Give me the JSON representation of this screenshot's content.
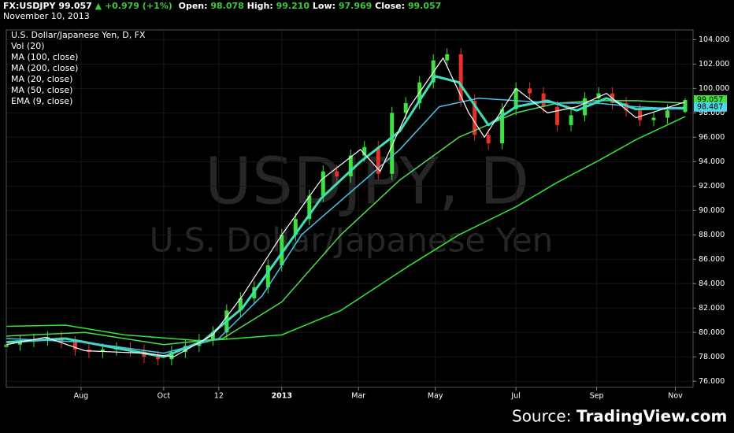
{
  "chart_data": {
    "type": "candlestick",
    "header": {
      "symbol": "FX:USDJPY",
      "last": "99.057",
      "change": "+0.979 (+1%)",
      "open_label": "Open:",
      "open": "98.078",
      "high_label": "High:",
      "high": "99.210",
      "low_label": "Low:",
      "low": "97.969",
      "close_label": "Close:",
      "close": "99.057",
      "date": "November 10, 2013"
    },
    "title": "U.S. Dollar/Japanese Yen, D, FX",
    "volume_label": "Vol (20)",
    "watermark": [
      "USDJPY, D",
      "U.S. Dollar/Japanese Yen"
    ],
    "source_label": "Source:",
    "source": "TradingView.com",
    "xlim": [
      0,
      349
    ],
    "xticks": [
      {
        "value": 38,
        "label": "Aug"
      },
      {
        "value": 80,
        "label": "Oct"
      },
      {
        "value": 108,
        "label": "12"
      },
      {
        "value": 140,
        "label": "2013"
      },
      {
        "value": 179,
        "label": "Mar"
      },
      {
        "value": 218,
        "label": "May"
      },
      {
        "value": 259,
        "label": "Jul"
      },
      {
        "value": 300,
        "label": "Sep"
      },
      {
        "value": 340,
        "label": "Nov"
      }
    ],
    "ylim": [
      75.5,
      104.8
    ],
    "yticks": [
      {
        "value": 76,
        "label": "76.000"
      },
      {
        "value": 78,
        "label": "78.000"
      },
      {
        "value": 80,
        "label": "80.000"
      },
      {
        "value": 82,
        "label": "82.000"
      },
      {
        "value": 84,
        "label": "84.000"
      },
      {
        "value": 86,
        "label": "86.000"
      },
      {
        "value": 88,
        "label": "88.000"
      },
      {
        "value": 90,
        "label": "90.000"
      },
      {
        "value": 92,
        "label": "92.000"
      },
      {
        "value": 94,
        "label": "94.000"
      },
      {
        "value": 96,
        "label": "96.000"
      },
      {
        "value": 98,
        "label": "98.000"
      },
      {
        "value": 100,
        "label": "100.000"
      },
      {
        "value": 102,
        "label": "102.000"
      },
      {
        "value": 104,
        "label": "104.000"
      }
    ],
    "grid": true,
    "up_color": "#3ee23e",
    "down_color": "#e8302a",
    "x": [
      0,
      7,
      14,
      21,
      28,
      35,
      42,
      49,
      56,
      63,
      70,
      77,
      84,
      91,
      98,
      105,
      112,
      119,
      126,
      133,
      140,
      147,
      154,
      161,
      168,
      175,
      182,
      189,
      196,
      203,
      210,
      217,
      224,
      231,
      238,
      245,
      252,
      259,
      266,
      273,
      280,
      287,
      294,
      301,
      308,
      315,
      322,
      329,
      336,
      345
    ],
    "open": [
      78.8,
      79.0,
      79.3,
      79.4,
      79.6,
      79.2,
      78.6,
      78.4,
      78.6,
      78.7,
      78.5,
      78.0,
      77.8,
      78.4,
      78.9,
      79.4,
      80.0,
      81.8,
      82.8,
      83.7,
      85.5,
      88.0,
      89.3,
      91.2,
      93.2,
      92.8,
      94.5,
      95.2,
      93.0,
      98.0,
      98.8,
      100.5,
      102.3,
      102.8,
      99.0,
      96.2,
      95.5,
      98.3,
      100.0,
      99.6,
      98.5,
      97.0,
      97.8,
      99.2,
      99.6,
      98.8,
      98.2,
      97.4,
      97.6,
      98.078
    ],
    "high": [
      79.5,
      79.8,
      79.9,
      80.1,
      80.1,
      79.7,
      79.1,
      79.1,
      79.2,
      79.2,
      79.0,
      78.5,
      78.9,
      79.4,
      79.9,
      80.5,
      82.3,
      83.3,
      84.2,
      86.0,
      88.5,
      89.8,
      91.7,
      93.7,
      93.7,
      95.0,
      95.7,
      95.7,
      98.5,
      99.3,
      101.0,
      102.8,
      103.3,
      103.3,
      99.5,
      96.7,
      98.8,
      100.5,
      100.5,
      100.1,
      99.0,
      98.3,
      99.7,
      100.1,
      100.1,
      99.3,
      98.7,
      98.1,
      98.7,
      99.21
    ],
    "low": [
      78.3,
      78.5,
      78.8,
      78.9,
      78.7,
      78.1,
      77.9,
      77.9,
      78.1,
      78.0,
      77.5,
      77.3,
      77.3,
      77.9,
      78.4,
      78.9,
      79.5,
      81.3,
      82.3,
      83.2,
      85.0,
      87.5,
      88.8,
      90.7,
      92.3,
      92.3,
      94.0,
      92.5,
      92.5,
      97.5,
      98.3,
      100.0,
      101.8,
      98.5,
      95.7,
      95.0,
      95.0,
      97.8,
      99.1,
      98.0,
      96.5,
      96.5,
      97.3,
      98.7,
      98.3,
      97.7,
      96.9,
      96.9,
      97.1,
      97.969
    ],
    "close": [
      79.0,
      79.3,
      79.4,
      79.6,
      79.2,
      78.6,
      78.4,
      78.6,
      78.7,
      78.5,
      78.0,
      77.8,
      78.4,
      78.9,
      79.4,
      80.0,
      81.8,
      82.8,
      83.7,
      85.5,
      88.0,
      89.3,
      91.2,
      93.2,
      92.8,
      94.5,
      95.2,
      93.0,
      98.0,
      98.8,
      100.5,
      102.3,
      102.8,
      99.0,
      96.2,
      95.5,
      98.3,
      100.0,
      99.6,
      98.5,
      97.0,
      97.8,
      99.2,
      99.6,
      98.8,
      98.2,
      97.4,
      97.6,
      98.2,
      99.057
    ],
    "series": [
      {
        "name": "MA (100, close)",
        "color": "#4fdc4f",
        "width": 1.5,
        "x": [
          0,
          40,
          80,
          110,
          140,
          170,
          200,
          230,
          259,
          280,
          300,
          320,
          345
        ],
        "values": [
          79.7,
          80.0,
          79.0,
          79.5,
          82.5,
          88.0,
          92.5,
          96.0,
          98.0,
          98.8,
          99.0,
          99.0,
          98.8
        ]
      },
      {
        "name": "MA (200, close)",
        "color": "#33e633",
        "width": 1.5,
        "x": [
          0,
          30,
          60,
          100,
          140,
          170,
          205,
          230,
          259,
          280,
          300,
          320,
          345
        ],
        "values": [
          80.5,
          80.6,
          79.8,
          79.3,
          79.8,
          81.8,
          85.5,
          88.0,
          90.3,
          92.3,
          94.0,
          95.8,
          97.7
        ]
      },
      {
        "name": "MA (20, close)",
        "color": "#3fe0b8",
        "width": 3,
        "x": [
          0,
          30,
          60,
          80,
          100,
          120,
          140,
          160,
          180,
          200,
          218,
          230,
          245,
          259,
          275,
          290,
          305,
          320,
          345
        ],
        "values": [
          79.2,
          79.5,
          78.6,
          78.0,
          79.3,
          82.0,
          86.5,
          91.0,
          94.0,
          96.5,
          101.0,
          100.5,
          97.0,
          98.5,
          99.0,
          98.2,
          99.2,
          98.3,
          98.4
        ]
      },
      {
        "name": "MA (50, close)",
        "color": "#4cc3e6",
        "width": 1.5,
        "x": [
          0,
          40,
          80,
          108,
          130,
          150,
          175,
          200,
          220,
          240,
          259,
          280,
          300,
          320,
          345
        ],
        "values": [
          79.5,
          79.2,
          78.3,
          79.5,
          83.0,
          88.0,
          91.5,
          95.0,
          98.5,
          99.2,
          99.0,
          98.8,
          98.8,
          98.5,
          98.3
        ]
      },
      {
        "name": "EMA (9, close)",
        "color": "#ffffff",
        "width": 1.2,
        "x": [
          0,
          20,
          40,
          70,
          85,
          105,
          120,
          140,
          160,
          180,
          190,
          205,
          222,
          235,
          243,
          259,
          275,
          290,
          305,
          320,
          345
        ],
        "values": [
          79.0,
          79.6,
          78.5,
          78.3,
          78.0,
          79.8,
          83.0,
          88.0,
          92.5,
          95.0,
          93.2,
          98.5,
          102.5,
          98.0,
          96.0,
          100.0,
          98.0,
          98.5,
          99.6,
          97.6,
          98.9
        ]
      }
    ],
    "price_tags": [
      {
        "value": 99.057,
        "color": "#3ee23e"
      },
      {
        "value": 98.487,
        "color": "#4cd8e6"
      }
    ]
  }
}
